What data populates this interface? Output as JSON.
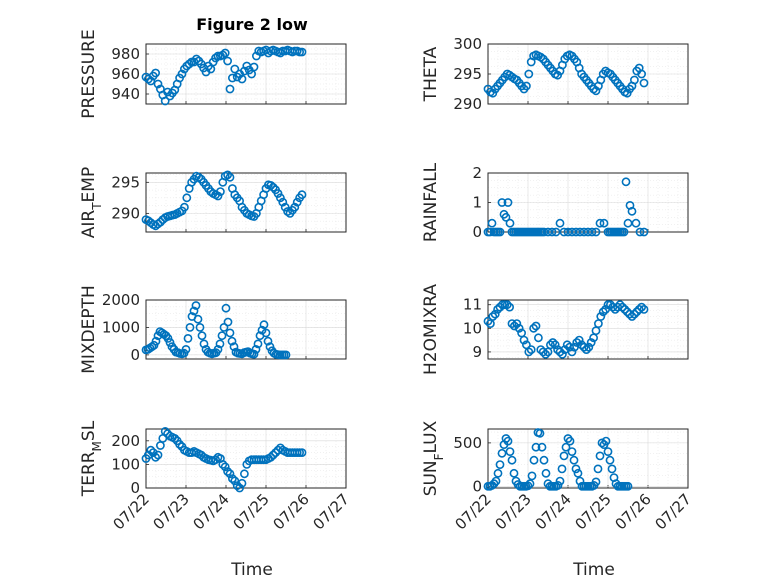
{
  "figure": {
    "title": "Figure 2 low",
    "marker_color": "#0072bd",
    "marker_style": "circle-open",
    "xlabel": "Time"
  },
  "chart_data": [
    {
      "type": "scatter",
      "ylabel": "PRESSURE",
      "ylim": [
        930,
        990
      ],
      "yticks": [
        940,
        960,
        980
      ],
      "xlim": [
        "07/22",
        "07/27"
      ],
      "xticks": [
        "07/22",
        "07/23",
        "07/24",
        "07/25",
        "07/26",
        "07/27"
      ],
      "grid": true,
      "title": "Figure 2 low",
      "x_days": [
        0,
        0.06,
        0.12,
        0.18,
        0.24,
        0.3,
        0.36,
        0.42,
        0.48,
        0.54,
        0.6,
        0.66,
        0.72,
        0.78,
        0.84,
        0.9,
        0.96,
        1.02,
        1.08,
        1.14,
        1.2,
        1.26,
        1.32,
        1.38,
        1.44,
        1.5,
        1.56,
        1.62,
        1.68,
        1.74,
        1.8,
        1.86,
        1.92,
        1.98,
        2.04,
        2.1,
        2.16,
        2.22,
        2.28,
        2.34,
        2.4,
        2.46,
        2.52,
        2.58,
        2.64,
        2.7,
        2.76,
        2.82,
        2.88,
        2.94,
        3.0,
        3.06,
        3.12,
        3.18,
        3.24,
        3.3,
        3.36,
        3.42,
        3.48,
        3.54,
        3.6,
        3.66,
        3.72,
        3.78,
        3.84,
        3.9
      ],
      "y": [
        957,
        955,
        953,
        958,
        961,
        950,
        945,
        939,
        933,
        942,
        938,
        941,
        944,
        950,
        956,
        960,
        965,
        968,
        970,
        972,
        972,
        975,
        973,
        970,
        966,
        962,
        968,
        965,
        972,
        976,
        978,
        978,
        979,
        981,
        973,
        945,
        956,
        965,
        957,
        960,
        955,
        963,
        968,
        964,
        960,
        967,
        978,
        983,
        982,
        983,
        984,
        981,
        983,
        984,
        983,
        982,
        981,
        983,
        983,
        984,
        983,
        982,
        983,
        983,
        982,
        982
      ]
    },
    {
      "type": "scatter",
      "ylabel": "THETA",
      "ylim": [
        290,
        300
      ],
      "yticks": [
        290,
        295,
        300
      ],
      "xlim": [
        "07/22",
        "07/27"
      ],
      "xticks": [
        "07/22",
        "07/23",
        "07/24",
        "07/25",
        "07/26",
        "07/27"
      ],
      "grid": true,
      "x_days": [
        0,
        0.06,
        0.12,
        0.18,
        0.24,
        0.3,
        0.36,
        0.42,
        0.48,
        0.54,
        0.6,
        0.66,
        0.72,
        0.78,
        0.84,
        0.9,
        0.96,
        1.02,
        1.08,
        1.14,
        1.2,
        1.26,
        1.32,
        1.38,
        1.44,
        1.5,
        1.56,
        1.62,
        1.68,
        1.74,
        1.8,
        1.86,
        1.92,
        1.98,
        2.04,
        2.1,
        2.16,
        2.22,
        2.28,
        2.34,
        2.4,
        2.46,
        2.52,
        2.58,
        2.64,
        2.7,
        2.76,
        2.82,
        2.88,
        2.94,
        3.0,
        3.06,
        3.12,
        3.18,
        3.24,
        3.3,
        3.36,
        3.42,
        3.48,
        3.54,
        3.6,
        3.66,
        3.72,
        3.78,
        3.84,
        3.9
      ],
      "y": [
        292.5,
        292,
        291.8,
        292.5,
        293,
        293.5,
        294,
        294.5,
        295,
        294.8,
        294.5,
        294.2,
        294,
        293.5,
        293,
        292.5,
        293,
        295,
        297,
        298,
        298.2,
        298,
        297.8,
        297.5,
        297,
        296.5,
        296,
        295.5,
        295,
        294.8,
        295.5,
        296.5,
        297.5,
        298,
        298.2,
        298,
        297.5,
        297,
        296,
        295,
        294.5,
        294,
        293.5,
        293,
        292.5,
        292.2,
        293,
        294,
        295,
        295.5,
        295.2,
        295,
        294.5,
        294,
        293.5,
        293,
        292.5,
        292,
        291.8,
        292.5,
        293,
        294,
        295.5,
        296,
        295,
        293.5
      ]
    },
    {
      "type": "scatter",
      "ylabel": "AIR_TEMP",
      "ylim": [
        287,
        296.5
      ],
      "yticks": [
        290,
        295
      ],
      "xlim": [
        "07/22",
        "07/27"
      ],
      "xticks": [
        "07/22",
        "07/23",
        "07/24",
        "07/25",
        "07/26",
        "07/27"
      ],
      "grid": true,
      "x_days": [
        0,
        0.06,
        0.12,
        0.18,
        0.24,
        0.3,
        0.36,
        0.42,
        0.48,
        0.54,
        0.6,
        0.66,
        0.72,
        0.78,
        0.84,
        0.9,
        0.96,
        1.02,
        1.08,
        1.14,
        1.2,
        1.26,
        1.32,
        1.38,
        1.44,
        1.5,
        1.56,
        1.62,
        1.68,
        1.74,
        1.8,
        1.86,
        1.92,
        1.98,
        2.04,
        2.1,
        2.16,
        2.22,
        2.28,
        2.34,
        2.4,
        2.46,
        2.52,
        2.58,
        2.64,
        2.7,
        2.76,
        2.82,
        2.88,
        2.94,
        3.0,
        3.06,
        3.12,
        3.18,
        3.24,
        3.3,
        3.36,
        3.42,
        3.48,
        3.54,
        3.6,
        3.66,
        3.72,
        3.78,
        3.84,
        3.9
      ],
      "y": [
        289,
        288.8,
        288.5,
        288.2,
        288,
        288.3,
        288.6,
        289,
        289.3,
        289.5,
        289.6,
        289.7,
        289.8,
        290,
        290.2,
        290.4,
        291,
        292.5,
        294,
        295,
        295.5,
        296,
        295.8,
        295.5,
        295,
        294.5,
        294,
        293.5,
        293.2,
        293,
        292.8,
        293.5,
        295,
        296,
        296.2,
        295.8,
        294,
        293,
        292.5,
        292,
        291,
        290.5,
        290,
        289.8,
        289.6,
        289.5,
        290,
        291,
        292,
        293,
        294,
        294.6,
        294.5,
        294.2,
        293.8,
        293.2,
        292.5,
        291.8,
        291,
        290.3,
        290,
        290.5,
        291,
        291.8,
        292.5,
        293
      ]
    },
    {
      "type": "scatter",
      "ylabel": "RAINFALL",
      "ylim": [
        0,
        2
      ],
      "yticks": [
        0,
        1,
        2
      ],
      "xlim": [
        "07/22",
        "07/27"
      ],
      "xticks": [
        "07/22",
        "07/23",
        "07/24",
        "07/25",
        "07/26",
        "07/27"
      ],
      "grid": true,
      "x_days": [
        0,
        0.05,
        0.1,
        0.15,
        0.2,
        0.25,
        0.3,
        0.35,
        0.4,
        0.45,
        0.5,
        0.55,
        0.6,
        0.65,
        0.7,
        0.75,
        0.8,
        0.85,
        0.9,
        0.95,
        1.0,
        1.05,
        1.1,
        1.15,
        1.2,
        1.25,
        1.3,
        1.35,
        1.4,
        1.5,
        1.6,
        1.7,
        1.8,
        1.9,
        2.0,
        2.1,
        2.2,
        2.3,
        2.4,
        2.5,
        2.6,
        2.7,
        2.8,
        2.9,
        3.0,
        3.05,
        3.1,
        3.15,
        3.2,
        3.25,
        3.3,
        3.35,
        3.4,
        3.45,
        3.5,
        3.55,
        3.6,
        3.7,
        3.8,
        3.9
      ],
      "y": [
        0,
        0,
        0.3,
        0,
        0,
        0,
        0,
        1.0,
        0.6,
        0.5,
        1.0,
        0.3,
        0,
        0,
        0,
        0,
        0,
        0,
        0,
        0,
        0,
        0,
        0,
        0,
        0,
        0,
        0,
        0,
        0,
        0,
        0,
        0,
        0.3,
        0,
        0,
        0,
        0,
        0,
        0,
        0,
        0,
        0,
        0.3,
        0.3,
        0,
        0,
        0,
        0,
        0,
        0,
        0,
        0,
        0,
        1.7,
        0.3,
        0.9,
        0.7,
        0.3,
        0,
        0
      ]
    },
    {
      "type": "scatter",
      "ylabel": "MIXDEPTH",
      "ylim": [
        -150,
        2000
      ],
      "yticks": [
        0,
        1000,
        2000
      ],
      "xlim": [
        "07/22",
        "07/27"
      ],
      "xticks": [
        "07/22",
        "07/23",
        "07/24",
        "07/25",
        "07/26",
        "07/27"
      ],
      "grid": true,
      "x_days": [
        0,
        0.05,
        0.1,
        0.15,
        0.2,
        0.25,
        0.3,
        0.35,
        0.4,
        0.45,
        0.5,
        0.55,
        0.6,
        0.65,
        0.7,
        0.75,
        0.8,
        0.85,
        0.9,
        0.95,
        1.0,
        1.05,
        1.1,
        1.15,
        1.2,
        1.25,
        1.3,
        1.35,
        1.4,
        1.45,
        1.5,
        1.55,
        1.6,
        1.65,
        1.7,
        1.75,
        1.8,
        1.85,
        1.9,
        1.95,
        2.0,
        2.05,
        2.1,
        2.15,
        2.2,
        2.25,
        2.3,
        2.35,
        2.4,
        2.45,
        2.5,
        2.55,
        2.6,
        2.65,
        2.7,
        2.75,
        2.8,
        2.85,
        2.9,
        2.95,
        3.0,
        3.05,
        3.1,
        3.15,
        3.2,
        3.25,
        3.3,
        3.35,
        3.4,
        3.45,
        3.5
      ],
      "y": [
        180,
        200,
        250,
        300,
        350,
        500,
        700,
        850,
        800,
        750,
        700,
        600,
        450,
        300,
        200,
        100,
        80,
        50,
        40,
        60,
        200,
        600,
        1000,
        1400,
        1600,
        1800,
        1300,
        1000,
        700,
        400,
        200,
        100,
        60,
        40,
        60,
        80,
        200,
        400,
        700,
        1000,
        1700,
        1200,
        800,
        500,
        300,
        100,
        60,
        50,
        40,
        80,
        100,
        120,
        60,
        40,
        30,
        200,
        400,
        700,
        900,
        1100,
        800,
        500,
        300,
        150,
        60,
        20,
        10,
        0,
        0,
        0,
        0
      ]
    },
    {
      "type": "scatter",
      "ylabel": "H2OMIXRA",
      "ylim": [
        8.7,
        11.2
      ],
      "yticks": [
        9,
        10,
        11
      ],
      "xlim": [
        "07/22",
        "07/27"
      ],
      "xticks": [
        "07/22",
        "07/23",
        "07/24",
        "07/25",
        "07/26",
        "07/27"
      ],
      "grid": true,
      "x_days": [
        0,
        0.06,
        0.12,
        0.18,
        0.24,
        0.3,
        0.36,
        0.42,
        0.48,
        0.54,
        0.6,
        0.66,
        0.72,
        0.78,
        0.84,
        0.9,
        0.96,
        1.02,
        1.08,
        1.14,
        1.2,
        1.26,
        1.32,
        1.38,
        1.44,
        1.5,
        1.56,
        1.62,
        1.68,
        1.74,
        1.8,
        1.86,
        1.92,
        1.98,
        2.04,
        2.1,
        2.16,
        2.22,
        2.28,
        2.34,
        2.4,
        2.46,
        2.52,
        2.58,
        2.64,
        2.7,
        2.76,
        2.82,
        2.88,
        2.94,
        3.0,
        3.06,
        3.12,
        3.18,
        3.24,
        3.3,
        3.36,
        3.42,
        3.48,
        3.54,
        3.6,
        3.66,
        3.72,
        3.78,
        3.84,
        3.9
      ],
      "y": [
        10.3,
        10.2,
        10.5,
        10.6,
        10.8,
        10.9,
        11.0,
        11.0,
        11.0,
        10.9,
        10.2,
        10.1,
        10.2,
        10.0,
        9.8,
        9.5,
        9.3,
        9.0,
        9.1,
        10.0,
        10.1,
        9.6,
        9.1,
        9.0,
        8.9,
        9.0,
        9.3,
        9.4,
        9.3,
        9.1,
        9.0,
        8.9,
        9.1,
        9.3,
        9.2,
        9.0,
        9.2,
        9.4,
        9.5,
        9.3,
        9.2,
        9.1,
        9.2,
        9.4,
        9.6,
        9.9,
        10.2,
        10.5,
        10.7,
        10.8,
        11.0,
        11.0,
        10.9,
        10.8,
        10.9,
        11.0,
        10.9,
        10.8,
        10.7,
        10.6,
        10.5,
        10.6,
        10.7,
        10.8,
        10.9,
        10.8
      ]
    },
    {
      "type": "scatter",
      "ylabel": "TERR_MSL",
      "ylim": [
        0,
        250
      ],
      "yticks": [
        0,
        100,
        200
      ],
      "xlim": [
        "07/22",
        "07/27"
      ],
      "xticks": [
        "07/22",
        "07/23",
        "07/24",
        "07/25",
        "07/26",
        "07/27"
      ],
      "grid": true,
      "x_days": [
        0,
        0.06,
        0.12,
        0.18,
        0.24,
        0.3,
        0.36,
        0.42,
        0.48,
        0.54,
        0.6,
        0.66,
        0.72,
        0.78,
        0.84,
        0.9,
        0.96,
        1.02,
        1.08,
        1.14,
        1.2,
        1.26,
        1.32,
        1.38,
        1.44,
        1.5,
        1.56,
        1.62,
        1.68,
        1.74,
        1.8,
        1.86,
        1.92,
        1.98,
        2.04,
        2.1,
        2.16,
        2.22,
        2.28,
        2.34,
        2.4,
        2.46,
        2.52,
        2.58,
        2.64,
        2.7,
        2.76,
        2.82,
        2.88,
        2.94,
        3.0,
        3.06,
        3.12,
        3.18,
        3.24,
        3.3,
        3.36,
        3.42,
        3.48,
        3.54,
        3.6,
        3.66,
        3.72,
        3.78,
        3.84,
        3.9
      ],
      "y": [
        125,
        140,
        160,
        150,
        130,
        140,
        180,
        210,
        240,
        230,
        220,
        215,
        210,
        200,
        185,
        175,
        160,
        155,
        150,
        150,
        155,
        150,
        145,
        140,
        130,
        125,
        120,
        118,
        115,
        120,
        130,
        125,
        100,
        90,
        70,
        60,
        40,
        30,
        10,
        0,
        20,
        60,
        100,
        115,
        120,
        120,
        120,
        120,
        120,
        120,
        120,
        125,
        130,
        140,
        150,
        160,
        170,
        160,
        155,
        150,
        150,
        150,
        150,
        150,
        150,
        150
      ]
    },
    {
      "type": "scatter",
      "ylabel": "SUN_FLUX",
      "ylim": [
        -20,
        660
      ],
      "yticks": [
        0,
        500
      ],
      "xlim": [
        "07/22",
        "07/27"
      ],
      "xticks": [
        "07/22",
        "07/23",
        "07/24",
        "07/25",
        "07/26",
        "07/27"
      ],
      "grid": true,
      "x_days": [
        0,
        0.05,
        0.1,
        0.15,
        0.2,
        0.25,
        0.3,
        0.35,
        0.4,
        0.45,
        0.5,
        0.55,
        0.6,
        0.65,
        0.7,
        0.75,
        0.8,
        0.85,
        0.9,
        0.95,
        1.0,
        1.05,
        1.1,
        1.15,
        1.2,
        1.25,
        1.3,
        1.35,
        1.4,
        1.45,
        1.5,
        1.55,
        1.6,
        1.65,
        1.7,
        1.75,
        1.8,
        1.85,
        1.9,
        1.95,
        2.0,
        2.05,
        2.1,
        2.15,
        2.2,
        2.25,
        2.3,
        2.35,
        2.4,
        2.45,
        2.5,
        2.55,
        2.6,
        2.65,
        2.7,
        2.75,
        2.8,
        2.85,
        2.9,
        2.95,
        3.0,
        3.05,
        3.1,
        3.15,
        3.2,
        3.25,
        3.3,
        3.35,
        3.4,
        3.45,
        3.5
      ],
      "y": [
        0,
        0,
        10,
        30,
        60,
        150,
        250,
        380,
        480,
        550,
        520,
        400,
        300,
        150,
        60,
        20,
        0,
        0,
        0,
        0,
        5,
        30,
        120,
        300,
        450,
        620,
        610,
        450,
        300,
        150,
        30,
        0,
        0,
        0,
        0,
        10,
        60,
        200,
        350,
        450,
        550,
        520,
        400,
        300,
        200,
        150,
        60,
        0,
        0,
        0,
        0,
        0,
        0,
        10,
        50,
        200,
        350,
        500,
        480,
        520,
        400,
        300,
        200,
        100,
        30,
        0,
        0,
        0,
        0,
        0,
        0
      ]
    }
  ]
}
